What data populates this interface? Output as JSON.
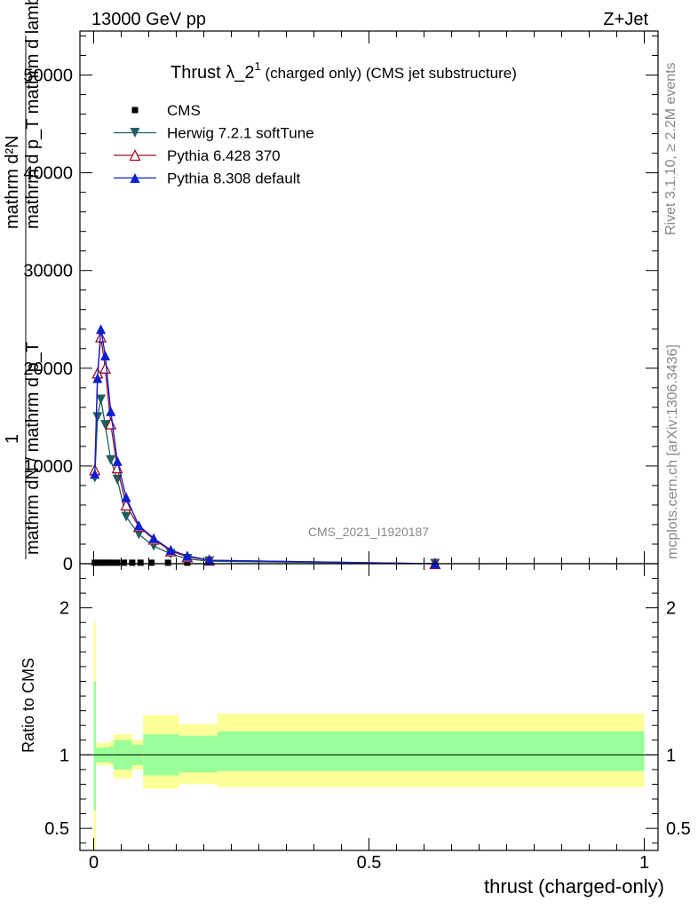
{
  "header": {
    "left": "13000 GeV pp",
    "right": "Z+Jet"
  },
  "side_text": {
    "rivet": "Rivet 3.1.10, ≥ 2.2M events",
    "mcplots": "mcplots.cern.ch [arXiv:1306.3436]"
  },
  "watermark": "CMS_2021_I1920187",
  "title": {
    "main": "Thrust λ_2",
    "sup": "1",
    "rest": " (charged only) (CMS jet substructure)"
  },
  "y_axis_label": {
    "line1": "mathrm d²N",
    "line2": "mathrm d p_T mathrm d lambda",
    "fraction_top": "1",
    "fraction_bottom": "mathrm dN / mathrm d p_T"
  },
  "ratio_axis_label": "Ratio to CMS",
  "x_axis_label": "thrust (charged-only)",
  "colors": {
    "cms": "#000000",
    "herwig": "#1f5f5f",
    "pythia6": "#a01020",
    "pythia8": "#0a1fd0",
    "band_inner": "#99ff99",
    "band_outer": "#ffff99"
  },
  "chart_data": [
    {
      "type": "line",
      "title": "Thrust λ_2^1 (charged only) (CMS jet substructure)",
      "xlabel": "thrust (charged-only)",
      "ylabel": "1/(mathrm dN / mathrm d p_T) mathrm d²N/(mathrm d p_T mathrm d lambda)",
      "xlim": [
        -0.025,
        1.025
      ],
      "ylim": [
        0,
        54500
      ],
      "yticks": [
        0,
        10000,
        20000,
        30000,
        40000,
        50000
      ],
      "ytick_labels": [
        "0",
        "10000",
        "20000",
        "30000",
        "40000",
        "50000"
      ],
      "legend_position": "top-left",
      "series": [
        {
          "name": "CMS",
          "marker": "square",
          "color": "#000000",
          "x": [
            0.002,
            0.006,
            0.012,
            0.018,
            0.025,
            0.033,
            0.043,
            0.055,
            0.07,
            0.085,
            0.105,
            0.135,
            0.17
          ],
          "y": [
            100,
            100,
            100,
            100,
            100,
            100,
            100,
            100,
            100,
            100,
            100,
            100,
            100
          ]
        },
        {
          "name": "Herwig 7.2.1 softTune",
          "marker": "triangle-down",
          "color": "#1f5f5f",
          "x": [
            0.002,
            0.007,
            0.013,
            0.021,
            0.031,
            0.043,
            0.059,
            0.082,
            0.109,
            0.14,
            0.17,
            0.21,
            0.62
          ],
          "y": [
            8800,
            15000,
            16800,
            14200,
            10600,
            8600,
            4800,
            3000,
            1800,
            1000,
            500,
            250,
            0
          ]
        },
        {
          "name": "Pythia 6.428 370",
          "marker": "triangle-open",
          "color": "#a01020",
          "x": [
            0.002,
            0.007,
            0.013,
            0.021,
            0.031,
            0.043,
            0.059,
            0.082,
            0.109,
            0.14,
            0.17,
            0.21,
            0.62
          ],
          "y": [
            9600,
            19500,
            23200,
            20000,
            14300,
            9800,
            6000,
            3800,
            2500,
            1300,
            700,
            350,
            0
          ]
        },
        {
          "name": "Pythia 8.308 default",
          "marker": "triangle-up",
          "color": "#0a1fd0",
          "x": [
            0.002,
            0.007,
            0.013,
            0.021,
            0.031,
            0.043,
            0.059,
            0.082,
            0.109,
            0.14,
            0.17,
            0.21,
            0.62
          ],
          "y": [
            9200,
            19000,
            24000,
            21300,
            15600,
            10500,
            6800,
            3900,
            2600,
            1400,
            800,
            350,
            0
          ]
        }
      ]
    },
    {
      "type": "area",
      "ylabel": "Ratio to CMS",
      "xlim": [
        -0.025,
        1.025
      ],
      "ylim": [
        0.35,
        2.3
      ],
      "yticks": [
        0.5,
        1,
        2
      ],
      "ytick_labels": [
        "0.5",
        "1",
        "2"
      ],
      "xticks": [
        0,
        0.5,
        1
      ],
      "xtick_labels": [
        "0",
        "0.5",
        "1"
      ],
      "reference_line": 1,
      "bins": [
        [
          0.0,
          0.004,
          0.62,
          1.5,
          0.35,
          1.9
        ],
        [
          0.004,
          0.03,
          0.95,
          1.05,
          0.93,
          1.08
        ],
        [
          0.03,
          0.036,
          0.94,
          1.06,
          0.92,
          1.1
        ],
        [
          0.036,
          0.07,
          0.9,
          1.1,
          0.84,
          1.14
        ],
        [
          0.07,
          0.09,
          0.93,
          1.07,
          0.9,
          1.1
        ],
        [
          0.09,
          0.155,
          0.86,
          1.14,
          0.77,
          1.27
        ],
        [
          0.155,
          0.225,
          0.88,
          1.13,
          0.8,
          1.21
        ],
        [
          0.225,
          1.0,
          0.89,
          1.16,
          0.78,
          1.28
        ]
      ]
    }
  ]
}
